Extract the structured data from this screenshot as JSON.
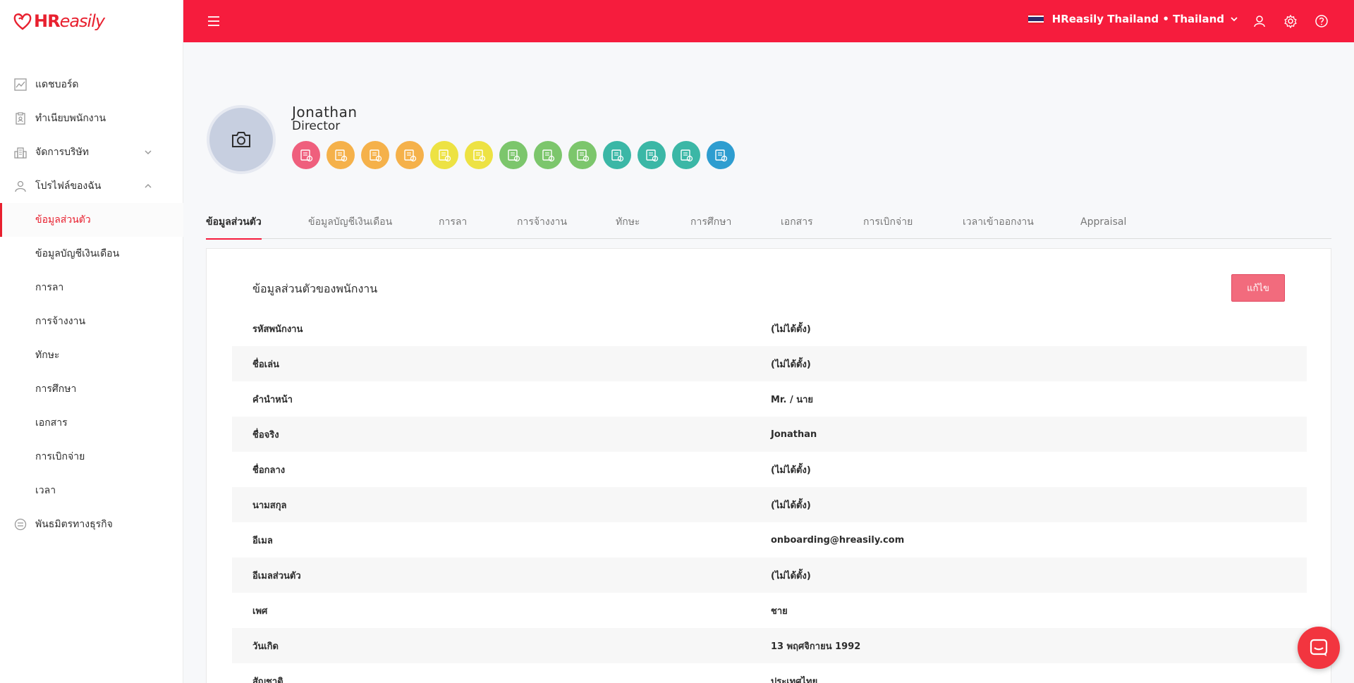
{
  "brand": {
    "name_bold": "HR",
    "name_light": "easily",
    "color": "#e8202f"
  },
  "header": {
    "company": "HReasily Thailand • Thailand",
    "bg_color": "#f61c3d"
  },
  "sidebar": {
    "items": [
      {
        "label": "แดชบอร์ด",
        "icon": "chart-icon"
      },
      {
        "label": "ทำเนียบพนักงาน",
        "icon": "clipboard-icon"
      },
      {
        "label": "จัดการบริษัท",
        "icon": "building-icon",
        "expandable": true
      },
      {
        "label": "โปรไฟล์ของฉัน",
        "icon": "user-icon",
        "expanded": true
      }
    ],
    "sub_items": [
      "ข้อมูลส่วนตัว",
      "ข้อมูลบัญชีเงินเดือน",
      "การลา",
      "การจ้างงาน",
      "ทักษะ",
      "การศึกษา",
      "เอกสาร",
      "การเบิกจ่าย",
      "เวลา"
    ],
    "active_sub": 0,
    "partner": {
      "label": "พันธมิตรทางธุรกิจ",
      "icon": "partner-icon"
    }
  },
  "profile": {
    "name": "Jonathan",
    "role": "Director"
  },
  "badges": [
    {
      "color": "#ef5f7d",
      "icon": "document-badge-icon"
    },
    {
      "color": "#f5b14a",
      "icon": "coin-badge-icon"
    },
    {
      "color": "#f5b14a",
      "icon": "edit-doc-badge-icon"
    },
    {
      "color": "#f5b14a",
      "icon": "coins-badge-icon"
    },
    {
      "color": "#ede243",
      "icon": "people-badge-icon"
    },
    {
      "color": "#ede243",
      "icon": "settings-badge-icon"
    },
    {
      "color": "#7cc66c",
      "icon": "id-card-badge-icon"
    },
    {
      "color": "#7cc66c",
      "icon": "certificate-badge-icon"
    },
    {
      "color": "#7cc66c",
      "icon": "form-badge-icon"
    },
    {
      "color": "#3bb7a6",
      "icon": "chat-doc-badge-icon"
    },
    {
      "color": "#3bb7a6",
      "icon": "stack-badge-icon"
    },
    {
      "color": "#3bb7a6",
      "icon": "files-badge-icon"
    },
    {
      "color": "#2e9dd0",
      "icon": "refresh-badge-icon"
    }
  ],
  "tabs": [
    "ข้อมูลส่วนตัว",
    "ข้อมูลบัญชีเงินเดือน",
    "การลา",
    "การจ้างงาน",
    "ทักษะ",
    "การศึกษา",
    "เอกสาร",
    "การเบิกจ่าย",
    "เวลาเข้าออกงาน",
    "Appraisal"
  ],
  "card": {
    "title": "ข้อมูลส่วนตัวของพนักงาน",
    "edit_label": "แก้ไข",
    "rows": [
      {
        "label": "รหัสพนักงาน",
        "value": "(ไม่ได้ตั้ง)"
      },
      {
        "label": "ชื่อเล่น",
        "value": "(ไม่ได้ตั้ง)"
      },
      {
        "label": "คำนำหน้า",
        "value": "Mr. / นาย"
      },
      {
        "label": "ชื่อจริง",
        "value": "Jonathan"
      },
      {
        "label": "ชื่อกลาง",
        "value": "(ไม่ได้ตั้ง)"
      },
      {
        "label": "นามสกุล",
        "value": "(ไม่ได้ตั้ง)"
      },
      {
        "label": "อีเมล",
        "value": "onboarding@hreasily.com"
      },
      {
        "label": "อีเมลส่วนตัว",
        "value": "(ไม่ได้ตั้ง)"
      },
      {
        "label": "เพศ",
        "value": "ชาย"
      },
      {
        "label": "วันเกิด",
        "value": "13 พฤศจิกายน 1992"
      },
      {
        "label": "สัญชาติ",
        "value": "ประเทศไทย"
      }
    ]
  }
}
